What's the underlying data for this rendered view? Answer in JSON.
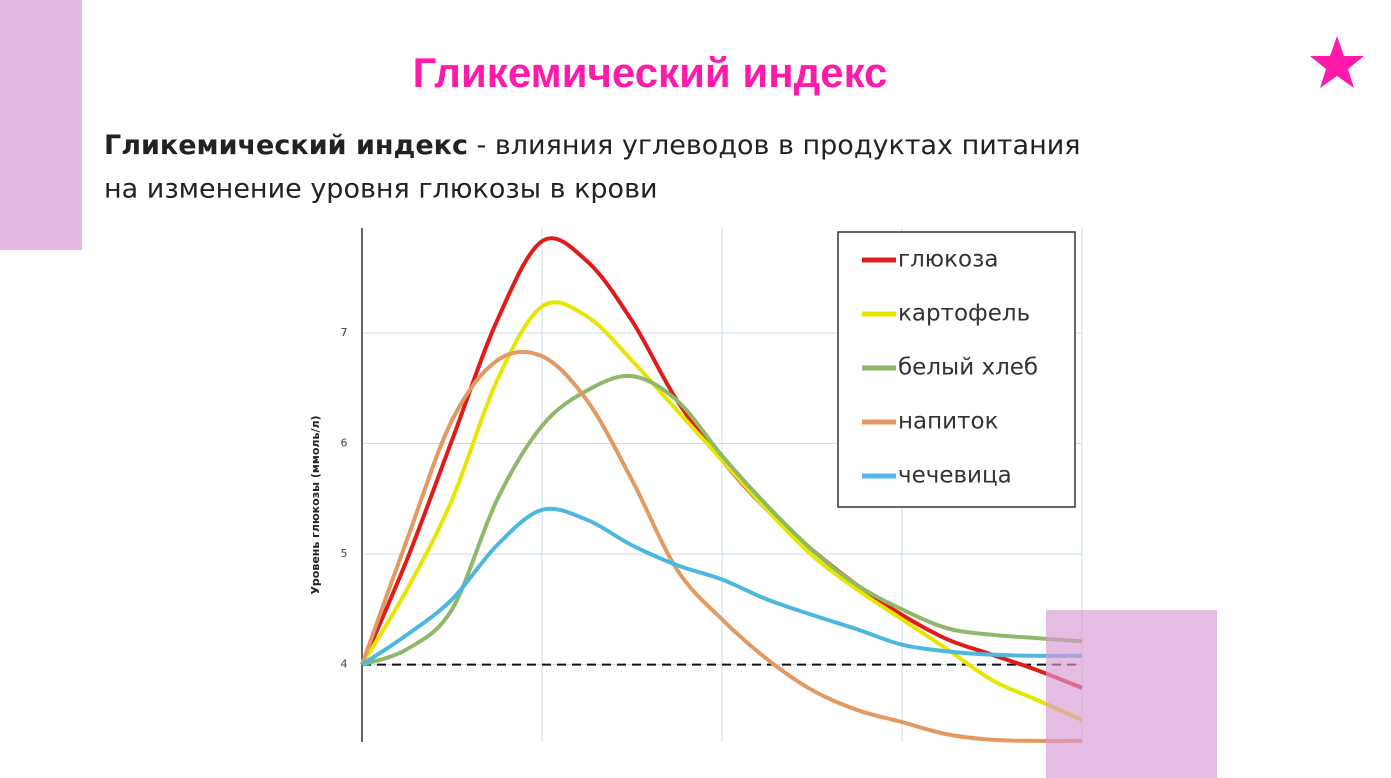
{
  "slide": {
    "title": "Гликемический индекс",
    "subtitle_bold": "Гликемический индекс",
    "subtitle_rest": " - влияния углеводов в продуктах питания",
    "subtitle_line2": "на изменение уровня глюкозы в крови"
  },
  "chart_data": {
    "type": "line",
    "ylabel": "Уровень глюкозы (ммоль/л)",
    "categories": [
      null,
      null,
      null,
      null,
      null,
      null,
      null,
      null,
      null,
      null,
      null,
      null,
      null,
      null,
      null,
      null,
      null
    ],
    "series": [
      {
        "name": "глюкоза",
        "color": "#e01b1b",
        "values": [
          4.0,
          4.95,
          6.03,
          7.11,
          7.83,
          7.65,
          7.11,
          6.39,
          5.85,
          5.4,
          5.04,
          4.72,
          4.45,
          4.23,
          4.09,
          3.95,
          3.79
        ]
      },
      {
        "name": "картофель",
        "color": "#e6e600",
        "values": [
          4.0,
          4.68,
          5.49,
          6.57,
          7.24,
          7.15,
          6.75,
          6.3,
          5.85,
          5.4,
          4.99,
          4.68,
          4.41,
          4.14,
          3.86,
          3.68,
          3.5
        ]
      },
      {
        "name": "белый хлеб",
        "color": "#8fb86a",
        "values": [
          4.0,
          4.14,
          4.5,
          5.49,
          6.16,
          6.48,
          6.61,
          6.39,
          5.89,
          5.44,
          5.04,
          4.72,
          4.5,
          4.33,
          4.27,
          4.24,
          4.21
        ]
      },
      {
        "name": "напиток",
        "color": "#e39a62",
        "values": [
          4.0,
          5.13,
          6.21,
          6.75,
          6.79,
          6.39,
          5.67,
          4.86,
          4.41,
          4.05,
          3.77,
          3.59,
          3.48,
          3.37,
          3.32,
          3.31,
          3.31
        ]
      },
      {
        "name": "чечевица",
        "color": "#4cb8e0",
        "values": [
          4.0,
          4.27,
          4.59,
          5.08,
          5.4,
          5.31,
          5.08,
          4.9,
          4.77,
          4.59,
          4.45,
          4.32,
          4.18,
          4.12,
          4.09,
          4.08,
          4.08
        ]
      }
    ],
    "ylim": [
      3.3,
      7.95
    ],
    "yticks": [
      4,
      5,
      6,
      7
    ],
    "grid": true,
    "legend": "upper right",
    "reference_line": 4
  }
}
